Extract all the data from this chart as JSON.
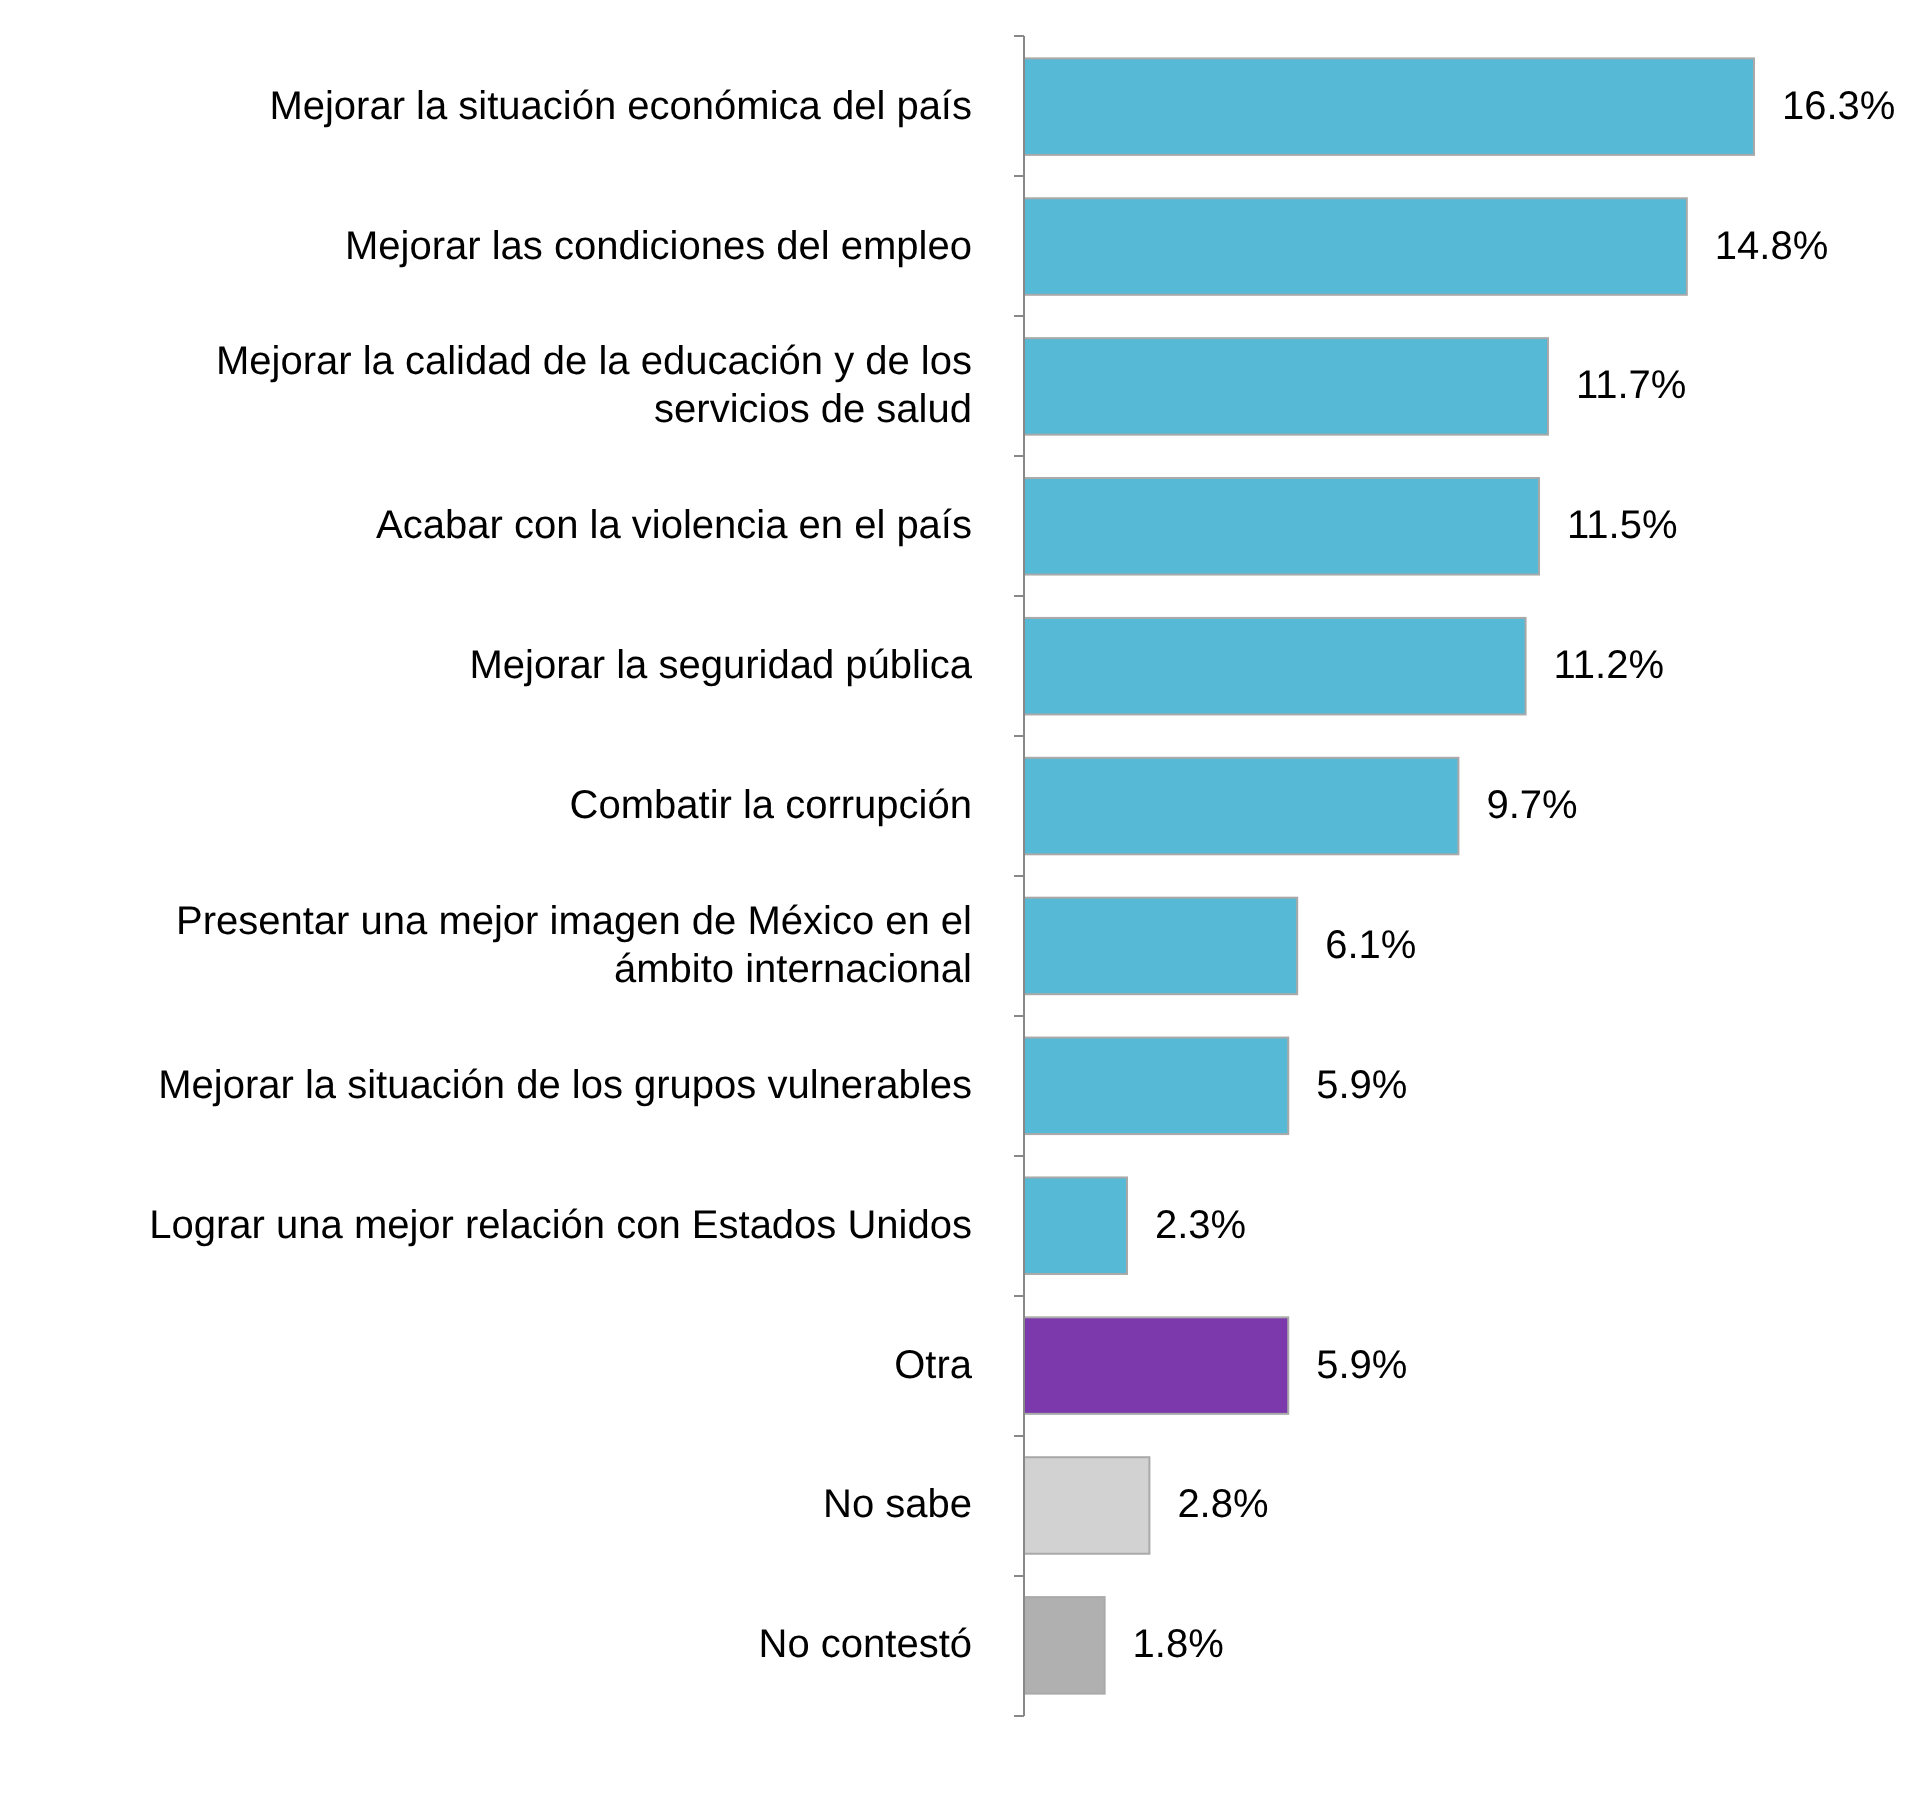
{
  "chart_data": {
    "type": "bar",
    "orientation": "horizontal",
    "categories": [
      "Mejorar la situación económica del país",
      "Mejorar las condiciones del empleo",
      "Mejorar la calidad de la educación y de los servicios de salud",
      "Acabar con la violencia en el país",
      "Mejorar la seguridad pública",
      "Combatir la corrupción",
      "Presentar una mejor imagen de México en el ámbito internacional",
      "Mejorar la situación de los grupos vulnerables",
      "Lograr una mejor relación con Estados Unidos",
      "Otra",
      "No sabe",
      "No contestó"
    ],
    "values": [
      16.3,
      14.8,
      11.7,
      11.5,
      11.2,
      9.7,
      6.1,
      5.9,
      2.3,
      5.9,
      2.8,
      1.8
    ],
    "value_labels": [
      "16.3%",
      "14.8%",
      "11.7%",
      "11.5%",
      "11.2%",
      "9.7%",
      "6.1%",
      "5.9%",
      "2.3%",
      "5.9%",
      "2.8%",
      "1.8%"
    ],
    "colors": [
      "#56b9d6",
      "#56b9d6",
      "#56b9d6",
      "#56b9d6",
      "#56b9d6",
      "#56b9d6",
      "#56b9d6",
      "#56b9d6",
      "#56b9d6",
      "#7b39ab",
      "#d2d2d2",
      "#b0b0b0"
    ]
  }
}
